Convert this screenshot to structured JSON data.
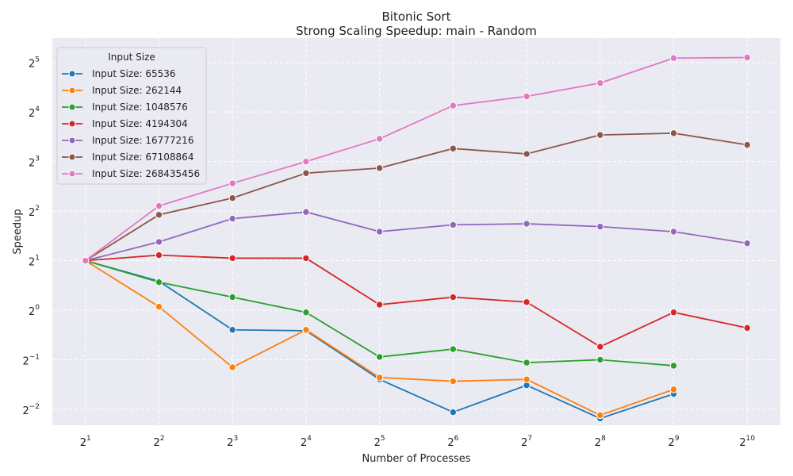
{
  "chart_data": {
    "type": "line",
    "title": "Bitonic Sort",
    "subtitle": "Strong Scaling Speedup: main - Random",
    "xlabel": "Number of Processes",
    "ylabel": "Speedup",
    "x_scale": "log2",
    "y_scale": "log2",
    "x": [
      2,
      4,
      8,
      16,
      32,
      64,
      128,
      256,
      512,
      1024
    ],
    "xticks": [
      {
        "base": "2",
        "exp": "1"
      },
      {
        "base": "2",
        "exp": "2"
      },
      {
        "base": "2",
        "exp": "3"
      },
      {
        "base": "2",
        "exp": "4"
      },
      {
        "base": "2",
        "exp": "5"
      },
      {
        "base": "2",
        "exp": "6"
      },
      {
        "base": "2",
        "exp": "7"
      },
      {
        "base": "2",
        "exp": "8"
      },
      {
        "base": "2",
        "exp": "9"
      },
      {
        "base": "2",
        "exp": "10"
      }
    ],
    "yticks": [
      {
        "base": "2",
        "exp": "−2",
        "value": 0.25
      },
      {
        "base": "2",
        "exp": "−1",
        "value": 0.5
      },
      {
        "base": "2",
        "exp": "0",
        "value": 1
      },
      {
        "base": "2",
        "exp": "1",
        "value": 2
      },
      {
        "base": "2",
        "exp": "2",
        "value": 4
      },
      {
        "base": "2",
        "exp": "3",
        "value": 8
      },
      {
        "base": "2",
        "exp": "4",
        "value": 16
      },
      {
        "base": "2",
        "exp": "5",
        "value": 32
      }
    ],
    "ylim": [
      0.2,
      45
    ],
    "grid": true,
    "legend": {
      "title": "Input Size",
      "placement": "top-left"
    },
    "series": [
      {
        "name": "Input Size: 65536",
        "color": "#1f77b4",
        "values": [
          2.0,
          1.5,
          0.76,
          0.75,
          0.38,
          0.24,
          0.35,
          0.22,
          0.31,
          null
        ]
      },
      {
        "name": "Input Size: 262144",
        "color": "#ff7f0e",
        "values": [
          2.0,
          1.05,
          0.45,
          0.76,
          0.39,
          0.37,
          0.38,
          0.23,
          0.33,
          null
        ]
      },
      {
        "name": "Input Size: 1048576",
        "color": "#2ca02c",
        "values": [
          2.0,
          1.48,
          1.2,
          0.97,
          0.52,
          0.58,
          0.48,
          0.5,
          0.46,
          null
        ]
      },
      {
        "name": "Input Size: 4194304",
        "color": "#d62728",
        "values": [
          2.0,
          2.16,
          2.07,
          2.07,
          1.08,
          1.2,
          1.12,
          0.6,
          0.97,
          0.78
        ]
      },
      {
        "name": "Input Size: 16777216",
        "color": "#9467bd",
        "values": [
          2.0,
          2.6,
          3.6,
          3.95,
          3.0,
          3.3,
          3.35,
          3.22,
          3.0,
          2.55
        ]
      },
      {
        "name": "Input Size: 67108864",
        "color": "#8c564b",
        "values": [
          2.0,
          3.8,
          4.8,
          6.8,
          7.3,
          9.6,
          8.9,
          11.6,
          11.9,
          10.1
        ]
      },
      {
        "name": "Input Size: 268435456",
        "color": "#e377c2",
        "values": [
          2.0,
          4.3,
          5.9,
          8.0,
          11.0,
          17.5,
          19.9,
          24.0,
          34.0,
          34.3
        ]
      }
    ]
  }
}
